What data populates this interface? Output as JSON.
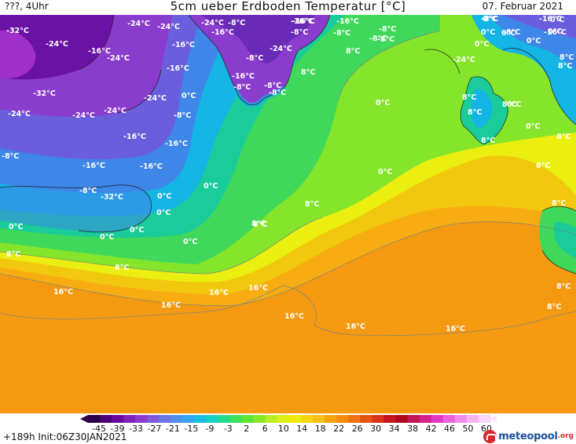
{
  "header": {
    "left": "???, 4Uhr",
    "title": "5cm ueber Erdboden Temperatur [°C]",
    "date": "07. Februar 2021"
  },
  "map_labels": [
    {
      "id": "l01",
      "text": "-32°C"
    },
    {
      "id": "l02",
      "text": "-24°C"
    },
    {
      "id": "l03",
      "text": "-24°C"
    },
    {
      "id": "l04",
      "text": "-16°C"
    },
    {
      "id": "l05",
      "text": "-24°C"
    },
    {
      "id": "l06",
      "text": "-24°C"
    },
    {
      "id": "l07",
      "text": "-24°C"
    },
    {
      "id": "l08",
      "text": "-16°C"
    },
    {
      "id": "l09",
      "text": "-8°C"
    },
    {
      "id": "l10",
      "text": "-16°C"
    },
    {
      "id": "l11",
      "text": "-16°C"
    },
    {
      "id": "l12",
      "text": "-32°C"
    },
    {
      "id": "l13",
      "text": "-24°C"
    },
    {
      "id": "l14",
      "text": "-24°C"
    },
    {
      "id": "l15",
      "text": "-16°C"
    },
    {
      "id": "l16",
      "text": "-24°C"
    },
    {
      "id": "l17",
      "text": "-24°C"
    },
    {
      "id": "l18",
      "text": "-16°C"
    },
    {
      "id": "l19",
      "text": "-16°C"
    },
    {
      "id": "l20",
      "text": "-8°C"
    },
    {
      "id": "l21",
      "text": "-16°C"
    },
    {
      "id": "l22",
      "text": "0°C"
    },
    {
      "id": "l23",
      "text": "-8°C"
    },
    {
      "id": "l24",
      "text": "-16°C"
    },
    {
      "id": "l25",
      "text": "-16°C"
    },
    {
      "id": "l26",
      "text": "-8°C"
    },
    {
      "id": "l27",
      "text": "-8°C"
    },
    {
      "id": "l28",
      "text": "-8°C"
    },
    {
      "id": "l29",
      "text": "0°C"
    },
    {
      "id": "l30",
      "text": "0°C"
    },
    {
      "id": "l31",
      "text": "0°C"
    },
    {
      "id": "l32",
      "text": "0°C"
    },
    {
      "id": "l33",
      "text": "0°C"
    },
    {
      "id": "l34",
      "text": "0°C"
    },
    {
      "id": "l35",
      "text": "0°C"
    },
    {
      "id": "l36",
      "text": "8°C"
    },
    {
      "id": "l37",
      "text": "8°C"
    },
    {
      "id": "l38",
      "text": "8°C"
    },
    {
      "id": "l39",
      "text": "8°C"
    },
    {
      "id": "l40",
      "text": "-32°C"
    },
    {
      "id": "l41",
      "text": "-16°C"
    },
    {
      "id": "l42",
      "text": "-24°C"
    },
    {
      "id": "l43",
      "text": "-8°C"
    },
    {
      "id": "l44",
      "text": "-8°C"
    },
    {
      "id": "l45",
      "text": "-16°C"
    },
    {
      "id": "l46",
      "text": "-8°C"
    },
    {
      "id": "l47",
      "text": "-8°C"
    },
    {
      "id": "l48",
      "text": "0°C"
    },
    {
      "id": "l49",
      "text": "-8°C"
    },
    {
      "id": "l50",
      "text": "0°C"
    },
    {
      "id": "l51",
      "text": "-8°C"
    },
    {
      "id": "l52",
      "text": "-16°C"
    },
    {
      "id": "l53",
      "text": "-8°C"
    },
    {
      "id": "l54",
      "text": "0°C"
    },
    {
      "id": "l55",
      "text": "8°C"
    },
    {
      "id": "l56",
      "text": "-24°C"
    },
    {
      "id": "l57",
      "text": "-8°C"
    },
    {
      "id": "l58",
      "text": "-16°C"
    },
    {
      "id": "l59",
      "text": "0°C"
    },
    {
      "id": "l60",
      "text": "0°C"
    },
    {
      "id": "l61",
      "text": "0°C"
    },
    {
      "id": "l62",
      "text": "-8°C"
    },
    {
      "id": "l63",
      "text": "0°C"
    },
    {
      "id": "l64",
      "text": "8°C"
    },
    {
      "id": "l65",
      "text": "0°C"
    },
    {
      "id": "l66",
      "text": "8°C"
    },
    {
      "id": "l67",
      "text": "8°C"
    },
    {
      "id": "l68",
      "text": "0°C"
    },
    {
      "id": "l69",
      "text": "8°C"
    },
    {
      "id": "l70",
      "text": "0°C"
    },
    {
      "id": "l71",
      "text": "8°C"
    },
    {
      "id": "l72",
      "text": "8°C"
    },
    {
      "id": "l73",
      "text": "8°C"
    },
    {
      "id": "l74",
      "text": "8°C"
    },
    {
      "id": "l75",
      "text": "8°C"
    },
    {
      "id": "l76",
      "text": "16°C"
    },
    {
      "id": "l77",
      "text": "16°C"
    },
    {
      "id": "l78",
      "text": "16°C"
    },
    {
      "id": "l79",
      "text": "16°C"
    },
    {
      "id": "l80",
      "text": "16°C"
    },
    {
      "id": "l81",
      "text": "16°C"
    },
    {
      "id": "l82",
      "text": "16°C"
    },
    {
      "id": "l83",
      "text": "8°C"
    },
    {
      "id": "l84",
      "text": "8°C"
    },
    {
      "id": "l85",
      "text": "0°C"
    },
    {
      "id": "l86",
      "text": "8°C"
    },
    {
      "id": "l87",
      "text": "8°C"
    }
  ],
  "legend": {
    "ticks": [
      "-45",
      "-39",
      "-33",
      "-27",
      "-21",
      "-15",
      "-9",
      "-3",
      "2",
      "6",
      "10",
      "14",
      "18",
      "22",
      "26",
      "30",
      "34",
      "38",
      "42",
      "46",
      "50",
      "60"
    ],
    "colors": [
      "#2a0046",
      "#4a0078",
      "#6a0a9a",
      "#7d23b5",
      "#8a3ccc",
      "#7e5ad8",
      "#6a78e4",
      "#4f92ec",
      "#31a8ee",
      "#19bfe2",
      "#19d2c4",
      "#24dc8e",
      "#3de05a",
      "#5be636",
      "#86ea2a",
      "#b6ee22",
      "#dcee12",
      "#f0ea0c",
      "#f5d611",
      "#f8c014",
      "#f7a40e",
      "#f48d0c",
      "#ef7210",
      "#e55412",
      "#d93318",
      "#c4161c",
      "#b0081c",
      "#c01854",
      "#d2208e",
      "#e23ac4",
      "#ea62de",
      "#f08cea",
      "#f6b4f2",
      "#fbd6f8"
    ]
  },
  "footer": {
    "run_info": "+189h  Init:06Z30JAN2021",
    "brand": "meteopool",
    "brand_tld": ".org"
  },
  "colors": {
    "sea_warm": "#f59a10",
    "sea_orange": "#f7ad12",
    "sea_yellow": "#f2da0c",
    "yellow_bright": "#eaef10",
    "green_light": "#84e52a",
    "green": "#3fd85a",
    "cyan_green": "#19cc9a",
    "cyan": "#14b4e4",
    "blue": "#3e86e8",
    "violet": "#6a5edc",
    "purple": "#8a3ccc",
    "deep_purple": "#6b12a6",
    "magenta": "#b83cd8"
  }
}
